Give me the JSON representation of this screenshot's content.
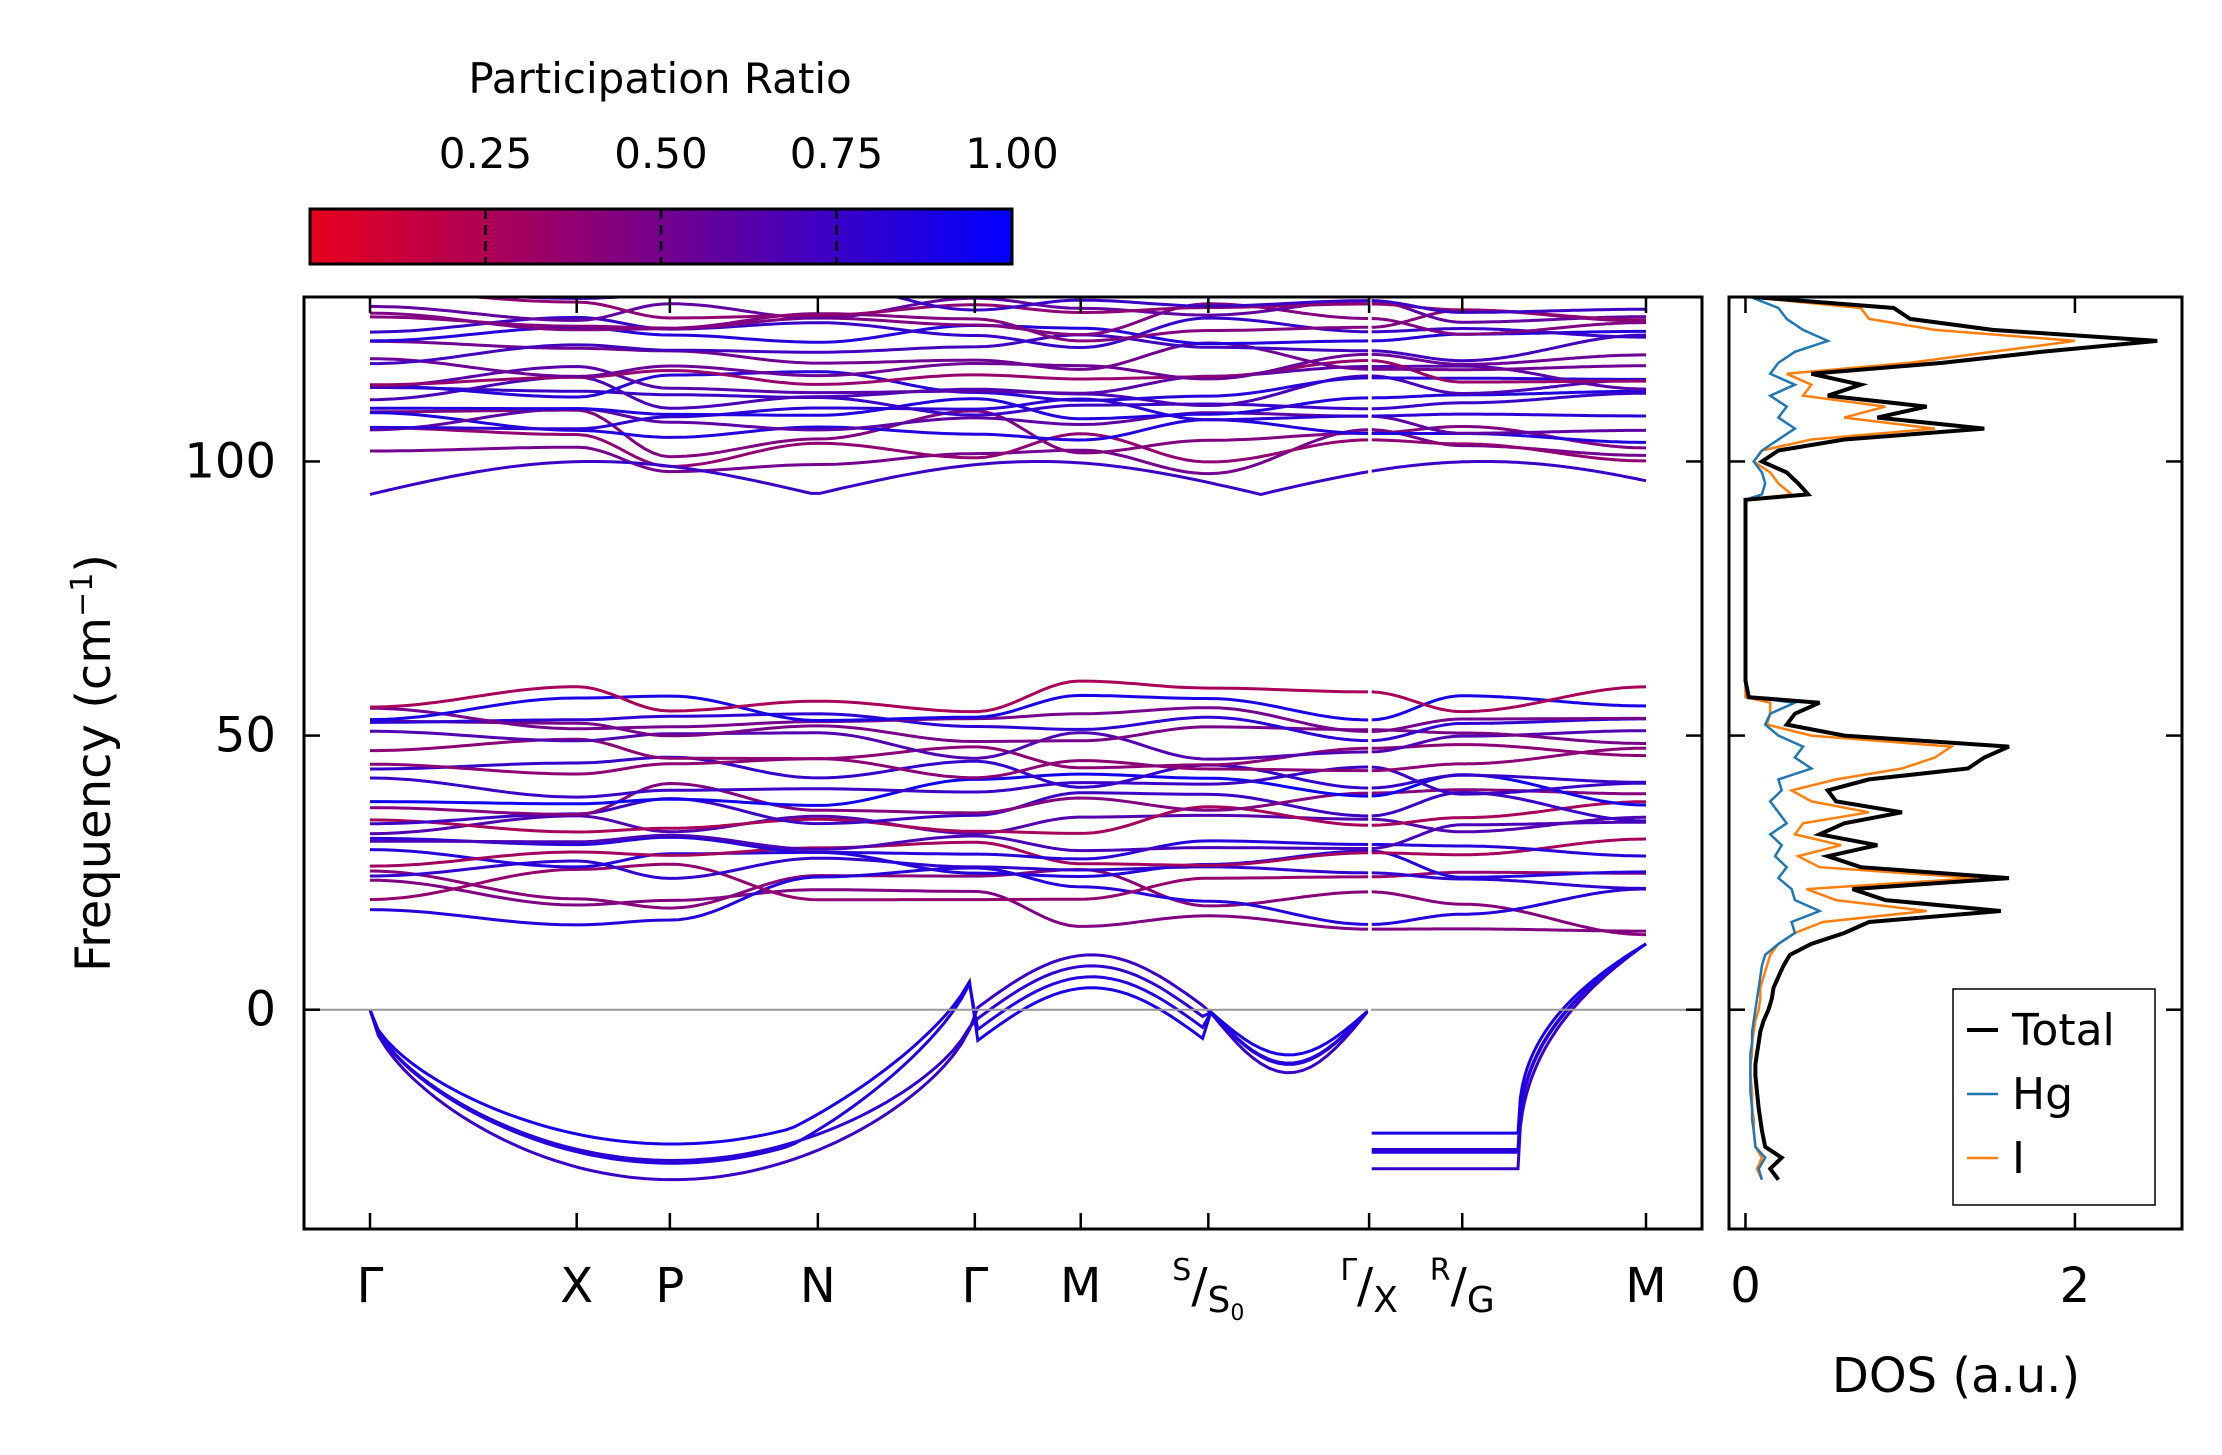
{
  "chart_data": {
    "type": "line",
    "colorbar": {
      "label": "Participation Ratio",
      "range": [
        0.0,
        1.0
      ],
      "ticks": [
        "0.25",
        "0.50",
        "0.75",
        "1.00"
      ],
      "tick_values": [
        0.25,
        0.5,
        0.75,
        1.0
      ],
      "color_low": "#e8001c",
      "color_high": "#0000ff"
    },
    "band_structure": {
      "ylabel": "Frequency (cm",
      "ylabel_sup": "−1",
      "ylabel_close": ")",
      "ylim": [
        -40,
        130
      ],
      "yticks": [
        "0",
        "50",
        "100"
      ],
      "ytick_values": [
        0,
        50,
        100
      ],
      "xlim": [
        0,
        1.0
      ],
      "break_at": 0.783,
      "q_points": [
        {
          "label": "Γ",
          "pos": 0.0
        },
        {
          "label": "X",
          "pos": 0.162
        },
        {
          "label": "P",
          "pos": 0.235
        },
        {
          "label": "N",
          "pos": 0.351
        },
        {
          "label": "Γ",
          "pos": 0.474
        },
        {
          "label": "M",
          "pos": 0.557
        },
        {
          "label": "S",
          "sub": "S",
          "sub2": "0",
          "pos": 0.657
        },
        {
          "label": "Γ",
          "sub": "X",
          "pos": 0.783
        },
        {
          "label": "R",
          "sub": "G",
          "pos": 0.856
        },
        {
          "label": "M",
          "pos": 1.0
        }
      ],
      "zero_line": 0,
      "branch_groups": {
        "high_optical": {
          "min": 94,
          "max": 130,
          "count": 22
        },
        "low_optical": {
          "min": 16,
          "max": 57,
          "count": 24
        },
        "imaginary": {
          "min": -31,
          "max": 0
        }
      }
    },
    "dos": {
      "xlabel": "DOS (a.u.)",
      "xticks": [
        "0",
        "2"
      ],
      "xtick_values": [
        0,
        2
      ],
      "xlim": [
        -0.1,
        2.65
      ],
      "ylim": [
        -40,
        130
      ],
      "legend_position": "bottom-right",
      "series": [
        {
          "name": "Total",
          "color": "#000000",
          "y": [
            -31,
            -29,
            -27,
            -25,
            -22,
            -20,
            -18,
            -15,
            -12,
            -10,
            -8,
            -6,
            -4,
            -2,
            0,
            2,
            4,
            6,
            8,
            10,
            12,
            14,
            16,
            18,
            20,
            22,
            24,
            26,
            28,
            30,
            32,
            34,
            36,
            38,
            40,
            42,
            44,
            46,
            48,
            50,
            52,
            54,
            56,
            57,
            60,
            70,
            80,
            90,
            93,
            94,
            96,
            98,
            100,
            102,
            104,
            106,
            108,
            110,
            112,
            114,
            116,
            118,
            120,
            122,
            124,
            126,
            128,
            130
          ],
          "x": [
            0.2,
            0.15,
            0.22,
            0.12,
            0.1,
            0.09,
            0.08,
            0.07,
            0.06,
            0.06,
            0.07,
            0.08,
            0.09,
            0.11,
            0.14,
            0.16,
            0.17,
            0.2,
            0.23,
            0.27,
            0.4,
            0.6,
            0.75,
            1.55,
            0.85,
            0.65,
            1.6,
            0.7,
            0.5,
            0.8,
            0.45,
            0.6,
            0.95,
            0.55,
            0.5,
            0.75,
            1.35,
            1.45,
            1.6,
            0.6,
            0.25,
            0.3,
            0.45,
            0.02,
            0.0,
            0.0,
            0.0,
            0.0,
            0.0,
            0.38,
            0.32,
            0.25,
            0.1,
            0.2,
            0.6,
            1.45,
            0.8,
            1.1,
            0.5,
            0.7,
            0.4,
            1.2,
            1.8,
            2.5,
            1.5,
            1.0,
            0.9,
            0.05
          ]
        },
        {
          "name": "Hg",
          "color": "#1f77b4",
          "y": [
            -31,
            -29,
            -27,
            -25,
            -22,
            -20,
            -18,
            -15,
            -12,
            -10,
            -8,
            -6,
            -4,
            -2,
            0,
            2,
            4,
            6,
            8,
            10,
            12,
            14,
            16,
            18,
            20,
            22,
            24,
            26,
            28,
            30,
            32,
            34,
            36,
            38,
            40,
            42,
            44,
            46,
            48,
            50,
            52,
            54,
            56,
            57,
            60,
            70,
            80,
            90,
            93,
            94,
            96,
            98,
            100,
            102,
            104,
            106,
            108,
            110,
            112,
            114,
            116,
            118,
            120,
            122,
            124,
            126,
            128,
            130
          ],
          "x": [
            0.1,
            0.08,
            0.12,
            0.06,
            0.05,
            0.04,
            0.04,
            0.03,
            0.03,
            0.03,
            0.03,
            0.04,
            0.04,
            0.05,
            0.06,
            0.07,
            0.08,
            0.09,
            0.1,
            0.12,
            0.2,
            0.3,
            0.28,
            0.45,
            0.3,
            0.28,
            0.2,
            0.25,
            0.18,
            0.22,
            0.15,
            0.25,
            0.2,
            0.15,
            0.22,
            0.2,
            0.4,
            0.3,
            0.35,
            0.2,
            0.12,
            0.15,
            0.3,
            0.02,
            0.0,
            0.0,
            0.0,
            0.0,
            0.0,
            0.1,
            0.12,
            0.1,
            0.05,
            0.1,
            0.2,
            0.3,
            0.2,
            0.25,
            0.15,
            0.3,
            0.15,
            0.2,
            0.3,
            0.5,
            0.35,
            0.25,
            0.2,
            0.03
          ]
        },
        {
          "name": "I",
          "color": "#ff7f0e",
          "y": [
            -31,
            -29,
            -27,
            -25,
            -22,
            -20,
            -18,
            -15,
            -12,
            -10,
            -8,
            -6,
            -4,
            -2,
            0,
            2,
            4,
            6,
            8,
            10,
            12,
            14,
            16,
            18,
            20,
            22,
            24,
            26,
            28,
            30,
            32,
            34,
            36,
            38,
            40,
            42,
            44,
            46,
            48,
            50,
            52,
            54,
            56,
            57,
            60,
            70,
            80,
            90,
            93,
            94,
            96,
            98,
            100,
            102,
            104,
            106,
            108,
            110,
            112,
            114,
            116,
            118,
            120,
            122,
            124,
            126,
            128,
            130
          ],
          "x": [
            0.1,
            0.07,
            0.1,
            0.06,
            0.05,
            0.05,
            0.04,
            0.04,
            0.03,
            0.03,
            0.04,
            0.04,
            0.05,
            0.06,
            0.08,
            0.09,
            0.09,
            0.11,
            0.13,
            0.15,
            0.2,
            0.3,
            0.47,
            1.1,
            0.55,
            0.37,
            1.4,
            0.45,
            0.32,
            0.58,
            0.3,
            0.35,
            0.75,
            0.4,
            0.28,
            0.55,
            0.95,
            1.15,
            1.25,
            0.4,
            0.13,
            0.15,
            0.15,
            0.0,
            0.0,
            0.0,
            0.0,
            0.0,
            0.0,
            0.28,
            0.2,
            0.15,
            0.05,
            0.1,
            0.4,
            1.15,
            0.6,
            0.85,
            0.35,
            0.4,
            0.25,
            1.0,
            1.5,
            2.0,
            1.15,
            0.75,
            0.7,
            0.02
          ]
        }
      ]
    }
  }
}
